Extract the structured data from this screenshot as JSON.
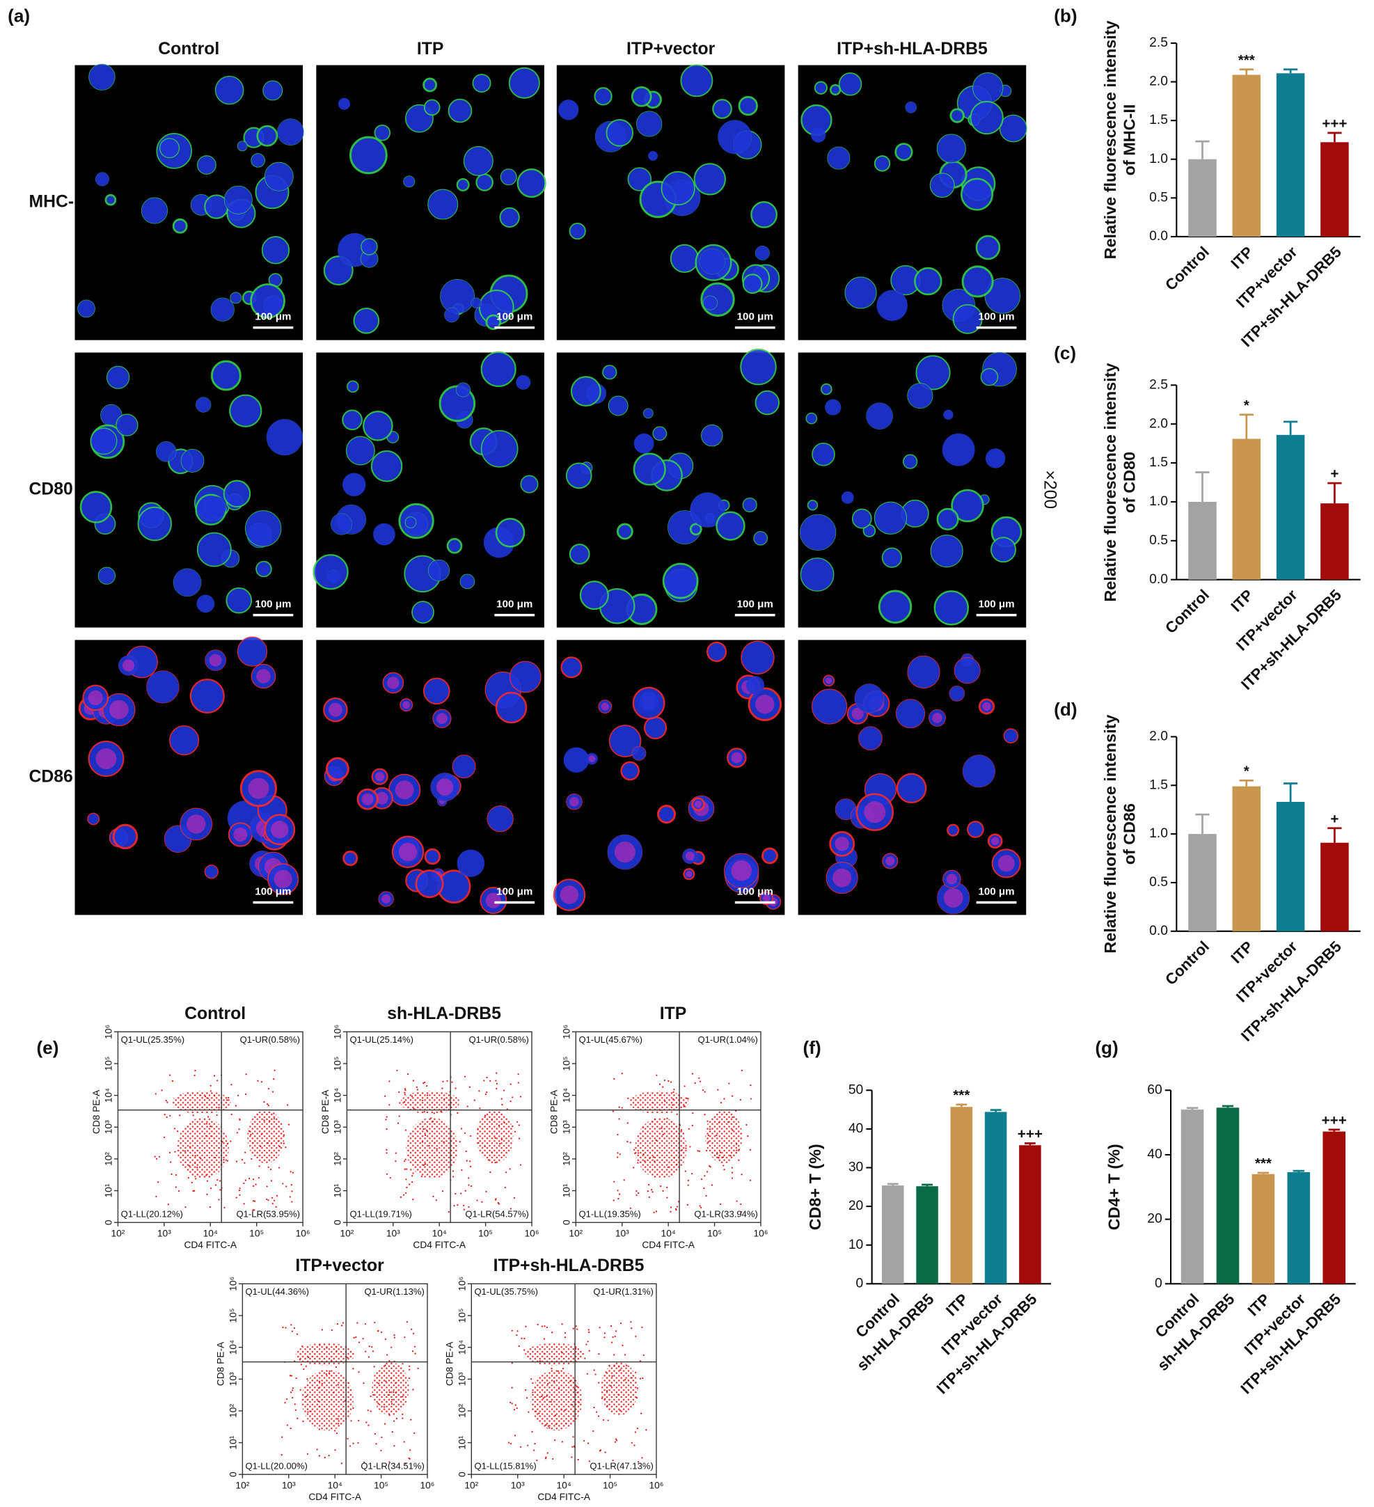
{
  "micrographs": {
    "label": "(a)",
    "columns": [
      "Control",
      "ITP",
      "ITP+vector",
      "ITP+sh-HLA-DRB5"
    ],
    "rows": [
      "MHC-II",
      "CD80",
      "CD86"
    ],
    "scale_bar": "100 μm",
    "magnification": "×200"
  },
  "chart_data": [
    {
      "type": "bar",
      "label": "(b)",
      "ylabel": [
        "Relative fluorescence intensity",
        "of MHC-II"
      ],
      "categories": [
        "Control",
        "ITP",
        "ITP+vector",
        "ITP+sh-HLA-DRB5"
      ],
      "values": [
        1.0,
        2.09,
        2.11,
        1.22
      ],
      "errors": [
        0.23,
        0.07,
        0.05,
        0.12
      ],
      "annotations": [
        null,
        "***",
        null,
        "+++"
      ],
      "colors": [
        "#a3a3a3",
        "#c8964f",
        "#0e7e90",
        "#a30b0b"
      ],
      "ylim": [
        0,
        2.5
      ],
      "yticks": [
        {
          "value": 0,
          "label": "0.0"
        },
        0.5,
        {
          "value": 1,
          "label": "1.0"
        },
        1.5,
        {
          "value": 2,
          "label": "2.0"
        },
        2.5
      ]
    },
    {
      "type": "bar",
      "label": "(c)",
      "ylabel": [
        "Relative fluorescence intensity",
        "of CD80"
      ],
      "categories": [
        "Control",
        "ITP",
        "ITP+vector",
        "ITP+sh-HLA-DRB5"
      ],
      "values": [
        1.0,
        1.81,
        1.86,
        0.98
      ],
      "errors": [
        0.38,
        0.31,
        0.17,
        0.26
      ],
      "annotations": [
        null,
        "*",
        null,
        "+"
      ],
      "colors": [
        "#a3a3a3",
        "#c8964f",
        "#0e7e90",
        "#a30b0b"
      ],
      "ylim": [
        0,
        2.5
      ],
      "yticks": [
        {
          "value": 0,
          "label": "0.0"
        },
        0.5,
        {
          "value": 1,
          "label": "1.0"
        },
        1.5,
        {
          "value": 2,
          "label": "2.0"
        },
        2.5
      ]
    },
    {
      "type": "bar",
      "label": "(d)",
      "ylabel": [
        "Relative fluorescence intensity",
        "of CD86"
      ],
      "categories": [
        "Control",
        "ITP",
        "ITP+vector",
        "ITP+sh-HLA-DRB5"
      ],
      "values": [
        1.0,
        1.49,
        1.33,
        0.91
      ],
      "errors": [
        0.2,
        0.06,
        0.19,
        0.15
      ],
      "annotations": [
        null,
        "*",
        null,
        "+"
      ],
      "colors": [
        "#a3a3a3",
        "#c8964f",
        "#0e7e90",
        "#a30b0b"
      ],
      "ylim": [
        0,
        2.0
      ],
      "yticks": [
        {
          "value": 0,
          "label": "0.0"
        },
        0.5,
        {
          "value": 1,
          "label": "1.0"
        },
        1.5,
        {
          "value": 2,
          "label": "2.0"
        }
      ]
    },
    {
      "type": "bar",
      "label": "(f)",
      "ylabel": [
        "CD8+ T (%)"
      ],
      "categories": [
        "Control",
        "sh-HLA-DRB5",
        "ITP",
        "ITP+vector",
        "ITP+sh-HLA-DRB5"
      ],
      "values": [
        25.4,
        25.2,
        45.7,
        44.4,
        35.8
      ],
      "errors": [
        0.4,
        0.4,
        0.6,
        0.5,
        0.5
      ],
      "annotations": [
        null,
        null,
        "***",
        null,
        "+++"
      ],
      "colors": [
        "#a3a3a3",
        "#0b6b47",
        "#c8964f",
        "#0e7e90",
        "#a30b0b"
      ],
      "ylim": [
        0,
        50
      ],
      "yticks": [
        0,
        10,
        20,
        30,
        40,
        50
      ]
    },
    {
      "type": "bar",
      "label": "(g)",
      "ylabel": [
        "CD4+ T (%)"
      ],
      "categories": [
        "Control",
        "sh-HLA-DRB5",
        "ITP",
        "ITP+vector",
        "ITP+sh-HLA-DRB5"
      ],
      "values": [
        54.0,
        54.6,
        34.0,
        34.6,
        47.2
      ],
      "errors": [
        0.5,
        0.5,
        0.4,
        0.4,
        0.6
      ],
      "annotations": [
        null,
        null,
        "***",
        null,
        "+++"
      ],
      "colors": [
        "#a3a3a3",
        "#0b6b47",
        "#c8964f",
        "#0e7e90",
        "#a30b0b"
      ],
      "ylim": [
        0,
        60
      ],
      "yticks": [
        0,
        20,
        40,
        60
      ]
    }
  ],
  "flow_cytometry": {
    "label": "(e)",
    "xlabel": "CD4 FITC-A",
    "ylabel": "CD8 PE-A",
    "xticks": [
      "10²",
      "10³",
      "10⁴",
      "10⁵",
      "10⁶"
    ],
    "yticks": [
      "0",
      "10¹",
      "10²",
      "10³",
      "10⁴",
      "10⁵",
      "10⁶"
    ],
    "plots": [
      {
        "title": "Control",
        "UL": "Q1-UL(25.35%)",
        "UR": "Q1-UR(0.58%)",
        "LL": "Q1-LL(20.12%)",
        "LR": "Q1-LR(53.95%)"
      },
      {
        "title": "sh-HLA-DRB5",
        "UL": "Q1-UL(25.14%)",
        "UR": "Q1-UR(0.58%)",
        "LL": "Q1-LL(19.71%)",
        "LR": "Q1-LR(54.57%)"
      },
      {
        "title": "ITP",
        "UL": "Q1-UL(45.67%)",
        "UR": "Q1-UR(1.04%)",
        "LL": "Q1-LL(19.35%)",
        "LR": "Q1-LR(33.94%)"
      },
      {
        "title": "ITP+vector",
        "UL": "Q1-UL(44.36%)",
        "UR": "Q1-UR(1.13%)",
        "LL": "Q1-LL(20.00%)",
        "LR": "Q1-LR(34.51%)"
      },
      {
        "title": "ITP+sh-HLA-DRB5",
        "UL": "Q1-UL(35.75%)",
        "UR": "Q1-UR(1.31%)",
        "LL": "Q1-LL(15.81%)",
        "LR": "Q1-LR(47.13%)"
      }
    ]
  }
}
